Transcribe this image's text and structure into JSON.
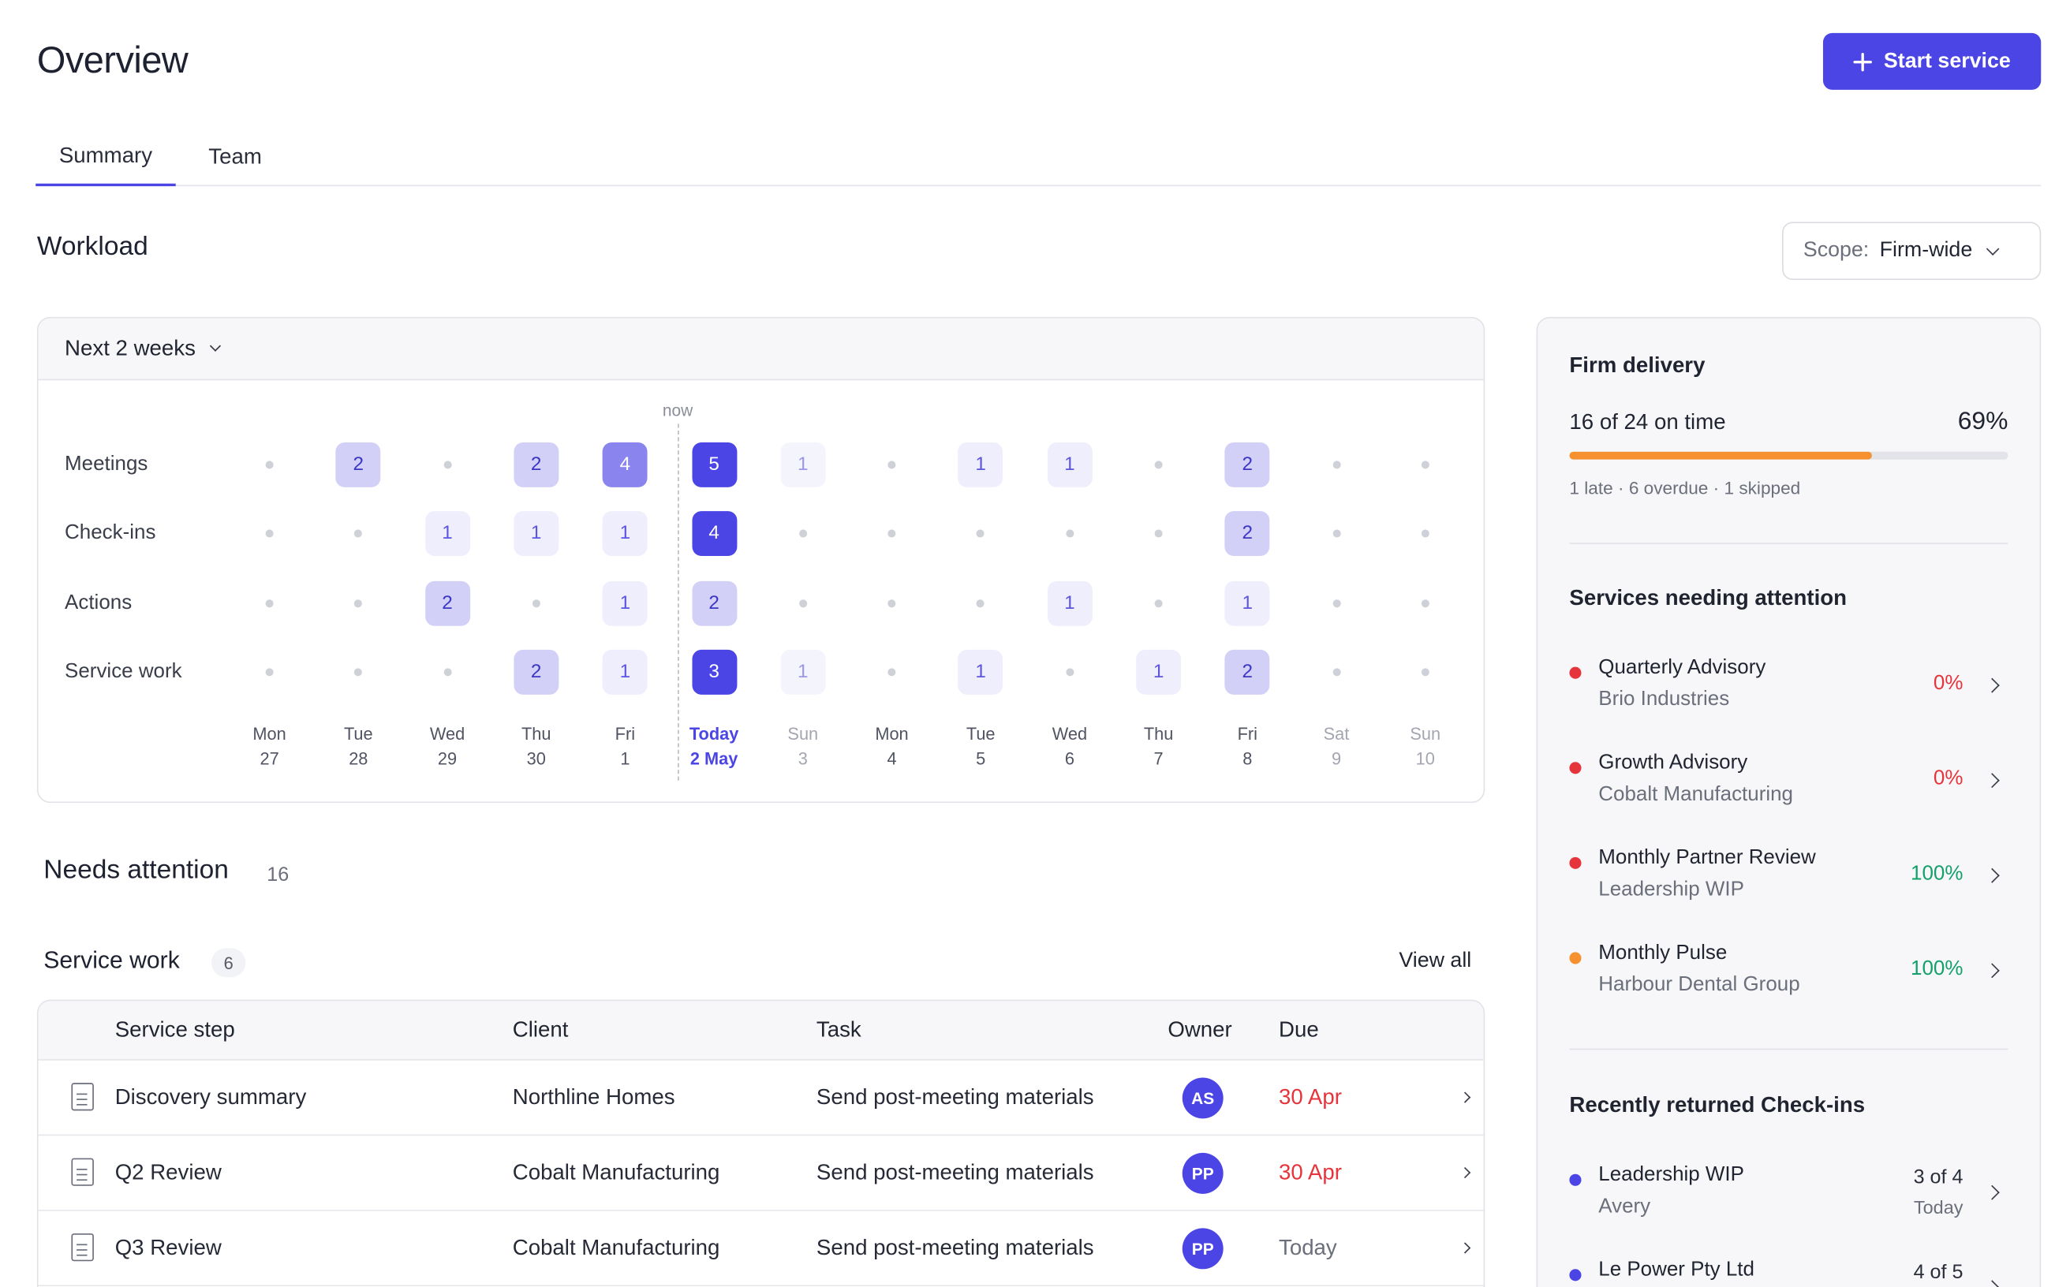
{
  "header": {
    "title": "Overview",
    "start_label": "Start service"
  },
  "tabs": [
    {
      "label": "Summary",
      "active": true
    },
    {
      "label": "Team",
      "active": false
    }
  ],
  "workload": {
    "title": "Workload",
    "scope_label": "Scope:",
    "scope_value": "Firm-wide",
    "range_label": "Next 2 weeks",
    "now_label": "now",
    "days": [
      {
        "name": "Mon",
        "num": "27"
      },
      {
        "name": "Tue",
        "num": "28"
      },
      {
        "name": "Wed",
        "num": "29"
      },
      {
        "name": "Thu",
        "num": "30"
      },
      {
        "name": "Fri",
        "num": "1"
      },
      {
        "name": "Today",
        "num": "2 May",
        "today": true
      },
      {
        "name": "Sun",
        "num": "3",
        "weekend": true
      },
      {
        "name": "Mon",
        "num": "4"
      },
      {
        "name": "Tue",
        "num": "5"
      },
      {
        "name": "Wed",
        "num": "6"
      },
      {
        "name": "Thu",
        "num": "7"
      },
      {
        "name": "Fri",
        "num": "8"
      },
      {
        "name": "Sat",
        "num": "9",
        "weekend": true
      },
      {
        "name": "Sun",
        "num": "10",
        "weekend": true
      }
    ],
    "rows": [
      {
        "label": "Meetings",
        "counts": [
          0,
          2,
          0,
          2,
          4,
          5,
          1,
          0,
          1,
          1,
          0,
          2,
          0,
          0
        ]
      },
      {
        "label": "Check-ins",
        "counts": [
          0,
          0,
          1,
          1,
          1,
          4,
          0,
          0,
          0,
          0,
          0,
          2,
          0,
          0
        ]
      },
      {
        "label": "Actions",
        "counts": [
          0,
          0,
          2,
          0,
          1,
          2,
          0,
          0,
          0,
          1,
          0,
          1,
          0,
          0
        ]
      },
      {
        "label": "Service work",
        "counts": [
          0,
          0,
          0,
          2,
          1,
          3,
          1,
          0,
          1,
          0,
          1,
          2,
          0,
          0
        ]
      }
    ]
  },
  "needs_attention": {
    "title": "Needs attention",
    "count": "16"
  },
  "service_work": {
    "title": "Service work",
    "count": "6",
    "view_all": "View all",
    "columns": {
      "step": "Service step",
      "client": "Client",
      "task": "Task",
      "owner": "Owner",
      "due": "Due"
    },
    "rows": [
      {
        "step": "Discovery summary",
        "client": "Northline Homes",
        "task": "Send post-meeting materials",
        "owner": "AS",
        "due": "30 Apr",
        "late": true
      },
      {
        "step": "Q2 Review",
        "client": "Cobalt Manufacturing",
        "task": "Send post-meeting materials",
        "owner": "PP",
        "due": "30 Apr",
        "late": true
      },
      {
        "step": "Q3 Review",
        "client": "Cobalt Manufacturing",
        "task": "Send post-meeting materials",
        "owner": "PP",
        "due": "Today",
        "late": false
      }
    ]
  },
  "firm_delivery": {
    "title": "Firm delivery",
    "summary": "16 of 24 on time",
    "percent": "69%",
    "progress": 0.69,
    "detail": "1 late · 6 overdue · 1 skipped",
    "progress_color": "#f5922f"
  },
  "services_attention": {
    "title": "Services needing attention",
    "items": [
      {
        "name": "Quarterly Advisory",
        "client": "Brio Industries",
        "value": "0%",
        "dot_color": "#e5343b",
        "tone": "red"
      },
      {
        "name": "Growth Advisory",
        "client": "Cobalt Manufacturing",
        "value": "0%",
        "dot_color": "#e5343b",
        "tone": "red"
      },
      {
        "name": "Monthly Partner Review",
        "client": "Leadership WIP",
        "value": "100%",
        "dot_color": "#e5343b",
        "tone": "green"
      },
      {
        "name": "Monthly Pulse",
        "client": "Harbour Dental Group",
        "value": "100%",
        "dot_color": "#f5922f",
        "tone": "green"
      }
    ]
  },
  "returned_checkins": {
    "title": "Recently returned Check-ins",
    "items": [
      {
        "name": "Leadership WIP",
        "sub": "Avery",
        "value": "3 of 4",
        "when": "Today",
        "dot_color": "#4b45e6"
      },
      {
        "name": "Le Power Pty Ltd",
        "sub": "",
        "value": "4 of 5",
        "when": "",
        "dot_color": "#4b45e6"
      }
    ]
  },
  "colors": {
    "accent": "#4b45e6",
    "late": "#e5343b",
    "success": "#13a06a"
  }
}
